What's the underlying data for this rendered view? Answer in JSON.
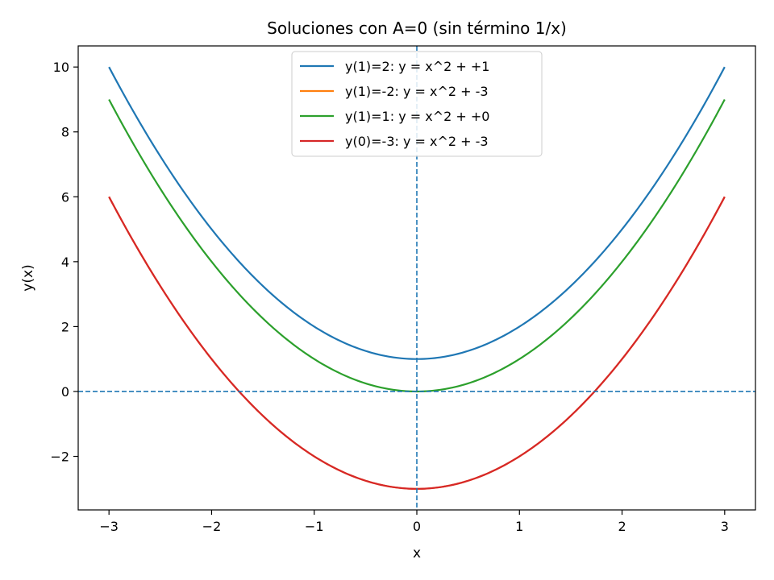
{
  "chart_data": {
    "type": "line",
    "title": "Soluciones con A=0 (sin término 1/x)",
    "xlabel": "x",
    "ylabel": "y(x)",
    "xlim": [
      -3.3,
      3.3
    ],
    "ylim": [
      -3.65,
      10.65
    ],
    "x_ticks": [
      -3,
      -2,
      -1,
      0,
      1,
      2,
      3
    ],
    "x_tick_labels": [
      "−3",
      "−2",
      "−1",
      "0",
      "1",
      "2",
      "3"
    ],
    "y_ticks": [
      -2,
      0,
      2,
      4,
      6,
      8,
      10
    ],
    "y_tick_labels": [
      "−2",
      "0",
      "2",
      "4",
      "6",
      "8",
      "10"
    ],
    "grid": false,
    "legend_position": "top-center",
    "x_domain": [
      -3,
      3
    ],
    "series": [
      {
        "name": "y(1)=2: y = x^2 + +1",
        "color": "#1f77b4",
        "x": [
          -3,
          -2,
          -1,
          0,
          1,
          2,
          3
        ],
        "values": [
          10,
          5,
          2,
          1,
          2,
          5,
          10
        ]
      },
      {
        "name": "y(1)=-2: y = x^2 + -3",
        "color": "#ff7f0e",
        "x": [
          -3,
          -2,
          -1,
          0,
          1,
          2,
          3
        ],
        "values": [
          6,
          1,
          -2,
          -3,
          -2,
          1,
          6
        ]
      },
      {
        "name": "y(1)=1: y = x^2 + +0",
        "color": "#2ca02c",
        "x": [
          -3,
          -2,
          -1,
          0,
          1,
          2,
          3
        ],
        "values": [
          9,
          4,
          1,
          0,
          1,
          4,
          9
        ]
      },
      {
        "name": "y(0)=-3: y = x^2 + -3",
        "color": "#d62728",
        "x": [
          -3,
          -2,
          -1,
          0,
          1,
          2,
          3
        ],
        "values": [
          6,
          1,
          -2,
          -3,
          -2,
          1,
          6
        ]
      }
    ],
    "reference_lines": [
      {
        "orientation": "horizontal",
        "value": 0,
        "color": "#1f77b4",
        "style": "dashed"
      },
      {
        "orientation": "vertical",
        "value": 0,
        "color": "#1f77b4",
        "style": "dashed"
      }
    ]
  }
}
